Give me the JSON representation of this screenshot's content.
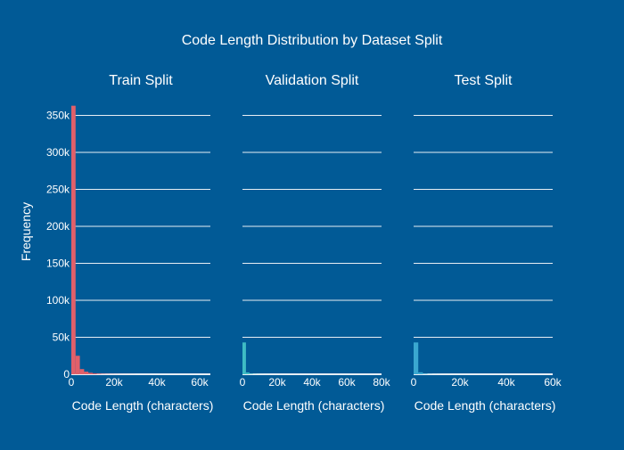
{
  "chart_data": {
    "type": "bar",
    "title": "Code Length Distribution by Dataset Split",
    "ylabel": "Frequency",
    "ylim": [
      0,
      365000
    ],
    "yticks": [
      0,
      50000,
      100000,
      150000,
      200000,
      250000,
      300000,
      350000
    ],
    "ytick_labels": [
      "0",
      "50k",
      "100k",
      "150k",
      "200k",
      "250k",
      "300k",
      "350k"
    ],
    "grid": true,
    "colors": {
      "background": "#015a96",
      "grid": "#e8eef4",
      "text": "#ffffff"
    },
    "panels": [
      {
        "title": "Train Split",
        "xlabel": "Code Length (characters)",
        "xlim": [
          0,
          65000
        ],
        "xticks": [
          0,
          20000,
          40000,
          60000
        ],
        "xtick_labels": [
          "0",
          "20k",
          "40k",
          "60k"
        ],
        "color": "#e0606a",
        "bins": [
          {
            "x0": 0,
            "x1": 2000,
            "count": 363000
          },
          {
            "x0": 2000,
            "x1": 4000,
            "count": 25000
          },
          {
            "x0": 4000,
            "x1": 6000,
            "count": 7000
          },
          {
            "x0": 6000,
            "x1": 8000,
            "count": 3500
          },
          {
            "x0": 8000,
            "x1": 10000,
            "count": 2000
          },
          {
            "x0": 10000,
            "x1": 12000,
            "count": 1200
          },
          {
            "x0": 12000,
            "x1": 14000,
            "count": 800
          },
          {
            "x0": 14000,
            "x1": 16000,
            "count": 500
          },
          {
            "x0": 16000,
            "x1": 18000,
            "count": 350
          },
          {
            "x0": 18000,
            "x1": 20000,
            "count": 250
          },
          {
            "x0": 20000,
            "x1": 22000,
            "count": 180
          },
          {
            "x0": 22000,
            "x1": 24000,
            "count": 130
          },
          {
            "x0": 24000,
            "x1": 26000,
            "count": 100
          },
          {
            "x0": 26000,
            "x1": 28000,
            "count": 80
          },
          {
            "x0": 28000,
            "x1": 30000,
            "count": 60
          }
        ]
      },
      {
        "title": "Validation Split",
        "xlabel": "Code Length (characters)",
        "xlim": [
          0,
          80000
        ],
        "xticks": [
          0,
          20000,
          40000,
          60000,
          80000
        ],
        "xtick_labels": [
          "0",
          "20k",
          "40k",
          "60k",
          "80k"
        ],
        "color": "#3fbcc4",
        "bins": [
          {
            "x0": 0,
            "x1": 2000,
            "count": 43000
          },
          {
            "x0": 2000,
            "x1": 4000,
            "count": 2500
          },
          {
            "x0": 4000,
            "x1": 6000,
            "count": 700
          },
          {
            "x0": 6000,
            "x1": 8000,
            "count": 300
          },
          {
            "x0": 8000,
            "x1": 10000,
            "count": 150
          },
          {
            "x0": 10000,
            "x1": 12000,
            "count": 100
          },
          {
            "x0": 12000,
            "x1": 14000,
            "count": 60
          },
          {
            "x0": 14000,
            "x1": 16000,
            "count": 40
          }
        ]
      },
      {
        "title": "Test Split",
        "xlabel": "Code Length (characters)",
        "xlim": [
          0,
          60000
        ],
        "xticks": [
          0,
          20000,
          40000,
          60000
        ],
        "xtick_labels": [
          "0",
          "20k",
          "40k",
          "60k"
        ],
        "color": "#3aa8d0",
        "bins": [
          {
            "x0": 0,
            "x1": 2000,
            "count": 43000
          },
          {
            "x0": 2000,
            "x1": 4000,
            "count": 2600
          },
          {
            "x0": 4000,
            "x1": 6000,
            "count": 700
          },
          {
            "x0": 6000,
            "x1": 8000,
            "count": 300
          },
          {
            "x0": 8000,
            "x1": 10000,
            "count": 150
          },
          {
            "x0": 10000,
            "x1": 12000,
            "count": 100
          },
          {
            "x0": 12000,
            "x1": 14000,
            "count": 60
          },
          {
            "x0": 14000,
            "x1": 16000,
            "count": 40
          }
        ]
      }
    ]
  }
}
